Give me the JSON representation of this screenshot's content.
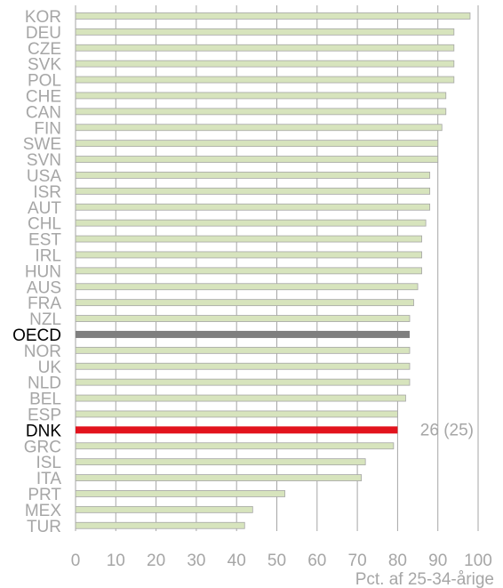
{
  "chart_data": {
    "type": "bar",
    "orientation": "horizontal",
    "categories": [
      "KOR",
      "DEU",
      "CZE",
      "SVK",
      "POL",
      "CHE",
      "CAN",
      "FIN",
      "SWE",
      "SVN",
      "USA",
      "ISR",
      "AUT",
      "CHL",
      "EST",
      "IRL",
      "HUN",
      "AUS",
      "FRA",
      "NZL",
      "OECD",
      "NOR",
      "UK",
      "NLD",
      "BEL",
      "ESP",
      "DNK",
      "GRC",
      "ISL",
      "ITA",
      "PRT",
      "MEX",
      "TUR"
    ],
    "values": [
      98,
      94,
      94,
      94,
      94,
      92,
      92,
      91,
      90,
      90,
      88,
      88,
      88,
      87,
      86,
      86,
      86,
      85,
      84,
      83,
      83,
      83,
      83,
      83,
      82,
      80,
      80,
      79,
      72,
      71,
      52,
      44,
      42
    ],
    "highlights": {
      "OECD": "#7f7f7f",
      "DNK": "#e2131d"
    },
    "bar_color": "#d7e4bd",
    "bar_edge_color": "#a6a6a6",
    "xlim": [
      0,
      100
    ],
    "xticks": [
      0,
      10,
      20,
      30,
      40,
      50,
      60,
      70,
      80,
      90,
      100
    ],
    "xlabel": "Pct. af 25-34-årige",
    "grid": "vertical",
    "annotation": {
      "category": "DNK",
      "text": "26 (25)"
    }
  }
}
